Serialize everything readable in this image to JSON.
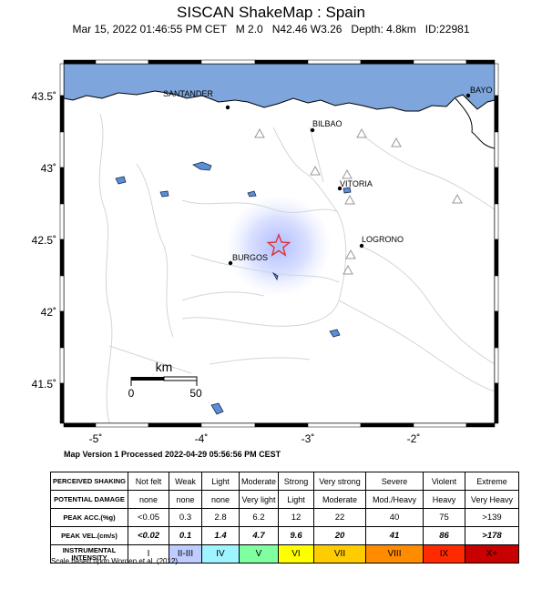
{
  "title": "SISCAN ShakeMap : Spain",
  "subtitle": "Mar 15, 2022 01:46:55 PM CET   M 2.0   N42.46 W3.26   Depth: 4.8km   ID:22981",
  "map": {
    "lat_labels": [
      "43.5˚",
      "43˚",
      "42.5˚",
      "42˚",
      "41.5˚"
    ],
    "lon_labels": [
      "-5˚",
      "-4˚",
      "-3˚",
      "-2˚"
    ],
    "cities": {
      "santander": "SANTANDER",
      "bilbao": "BILBAO",
      "vitoria": "VITORIA",
      "logrono": "LOGRONO",
      "burgos": "BURGOS",
      "bayo": "BAYO"
    },
    "scale_bar": {
      "unit": "km",
      "start": "0",
      "end": "50"
    },
    "colors": {
      "sea": "#7ea6dc",
      "epicenter": "#e0322f",
      "shaking": "#b3c3ff"
    }
  },
  "processed": "Map Version 1 Processed 2022-04-29 05:56:56 PM CEST",
  "legend": {
    "rows": [
      {
        "header": "PERCEIVED SHAKING",
        "cells": [
          "Not felt",
          "Weak",
          "Light",
          "Moderate",
          "Strong",
          "Very strong",
          "Severe",
          "Violent",
          "Extreme"
        ]
      },
      {
        "header": "POTENTIAL DAMAGE",
        "cells": [
          "none",
          "none",
          "none",
          "Very light",
          "Light",
          "Moderate",
          "Mod./Heavy",
          "Heavy",
          "Very Heavy"
        ]
      },
      {
        "header": "PEAK ACC.(%g)",
        "cells": [
          "<0.05",
          "0.3",
          "2.8",
          "6.2",
          "12",
          "22",
          "40",
          "75",
          ">139"
        ]
      },
      {
        "header": "PEAK VEL.(cm/s)",
        "cells": [
          "<0.02",
          "0.1",
          "1.4",
          "4.7",
          "9.6",
          "20",
          "41",
          "86",
          ">178"
        ]
      },
      {
        "header": "INSTRUMENTAL INTENSITY",
        "cells": [
          "I",
          "II-III",
          "IV",
          "V",
          "VI",
          "VII",
          "VIII",
          "IX",
          "X+"
        ]
      }
    ],
    "intensity_colors": [
      "#ffffff",
      "#bfccff",
      "#9ff5ff",
      "#7fffa0",
      "#ffff00",
      "#ffcc00",
      "#ff8c00",
      "#ff2a00",
      "#c80000"
    ]
  },
  "credit": "Scale based upon Worden et al. (2012)"
}
